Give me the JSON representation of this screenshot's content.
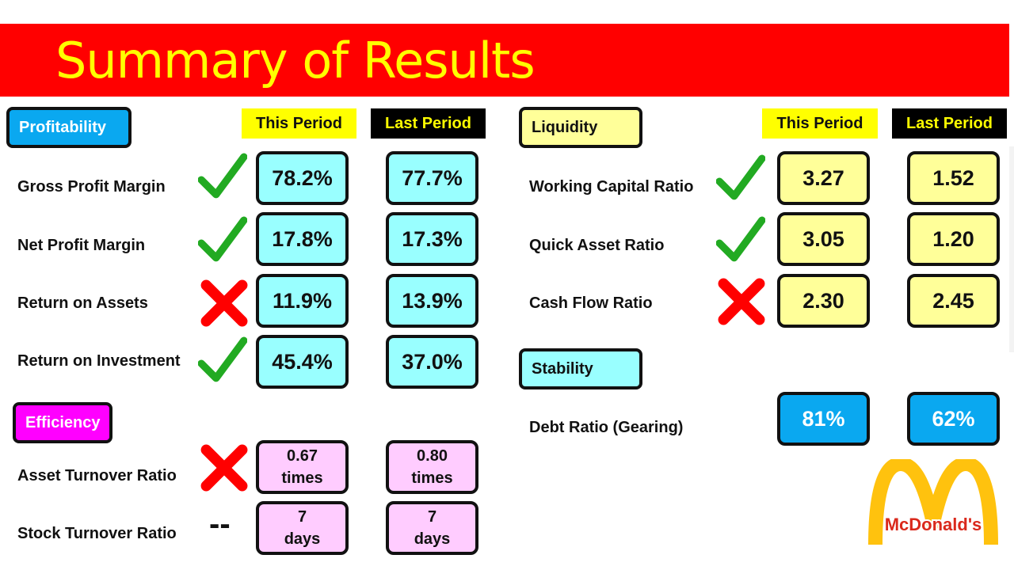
{
  "title": "Summary of Results",
  "columns": {
    "this_period": "This Period",
    "last_period": "Last Period"
  },
  "profitability": {
    "label": "Profitability",
    "rows": [
      {
        "label": "Gross Profit Margin",
        "status": "check",
        "this": "78.2%",
        "last": "77.7%"
      },
      {
        "label": "Net Profit Margin",
        "status": "check",
        "this": "17.8%",
        "last": "17.3%"
      },
      {
        "label": "Return on Assets",
        "status": "cross",
        "this": "11.9%",
        "last": "13.9%"
      },
      {
        "label": "Return on Investment",
        "status": "check",
        "this": "45.4%",
        "last": "37.0%"
      }
    ]
  },
  "efficiency": {
    "label": "Efficiency",
    "rows": [
      {
        "label": "Asset Turnover Ratio",
        "status": "cross",
        "this_value": "0.67",
        "this_unit": "times",
        "last_value": "0.80",
        "last_unit": "times"
      },
      {
        "label": "Stock Turnover Ratio",
        "status": "--",
        "this_value": "7",
        "this_unit": "days",
        "last_value": "7",
        "last_unit": "days"
      }
    ]
  },
  "liquidity": {
    "label": "Liquidity",
    "rows": [
      {
        "label": "Working Capital Ratio",
        "status": "check",
        "this": "3.27",
        "last": "1.52"
      },
      {
        "label": "Quick Asset Ratio",
        "status": "check",
        "this": "3.05",
        "last": "1.20"
      },
      {
        "label": "Cash Flow Ratio",
        "status": "cross",
        "this": "2.30",
        "last": "2.45"
      }
    ]
  },
  "stability": {
    "label": "Stability",
    "rows": [
      {
        "label": "Debt Ratio (Gearing)",
        "this": "81%",
        "last": "62%"
      }
    ]
  },
  "logo": {
    "text": "McDonald's",
    "icon": "golden-arches-logo"
  },
  "colors": {
    "banner": "#ff0000",
    "title": "#ffff00",
    "check": "#22aa22",
    "cross": "#ff0000",
    "cyan": "#99ffff",
    "pale_yellow": "#ffff99",
    "blue": "#0aa8f0",
    "pink": "#ffccff",
    "magenta": "#ff00ff"
  }
}
